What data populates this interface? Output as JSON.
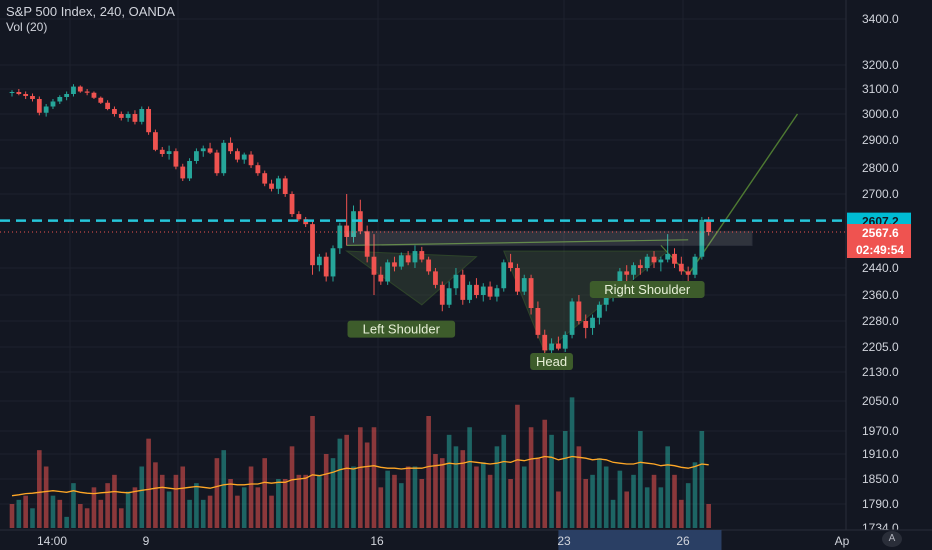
{
  "header": {
    "title": "S&P 500 Index, 240, OANDA",
    "volume_label": "Vol (20)"
  },
  "logo": "A",
  "colors": {
    "background": "#131722",
    "up": "#26a69a",
    "down": "#ef5350",
    "grid": "#1e222d",
    "accent_level": "#26c6da",
    "pattern_line": "#4e7a32",
    "pattern_label_bg": "#3d5c2b",
    "volume_ma": "#ffa726",
    "price_badge": "#ef5350",
    "level_badge": "#00bcd4",
    "scale_highlight": "#2a3f64"
  },
  "chart_data": {
    "type": "candlestick",
    "title": "S&P 500 Index, 240, OANDA",
    "y_ticks": [
      3400,
      3200,
      3100,
      3000,
      2900,
      2800,
      2700,
      2607.2,
      2567.6,
      2440,
      2360,
      2280,
      2205,
      2130,
      2050,
      1970,
      1910,
      1850,
      1790,
      1734
    ],
    "y_tick_labels": [
      "3400.0",
      "3200.0",
      "3100.0",
      "3000.0",
      "2900.0",
      "2800.0",
      "2700.0",
      "2607.2",
      "2567.6",
      "2440.0",
      "2360.0",
      "2280.0",
      "2205.0",
      "2130.0",
      "2050.0",
      "1970.0",
      "1910.0",
      "1850.0",
      "1790.0",
      "1734.0"
    ],
    "x_tick_labels": [
      "14:00",
      "9",
      "16",
      "23",
      "26",
      "Ap"
    ],
    "last_price": 2567.6,
    "last_price_label": "2567.6",
    "countdown": "02:49:54",
    "horizontal_level": 2607.2,
    "horizontal_level_label": "2607.2",
    "price_ohlc": [
      [
        3085,
        3095,
        3070,
        3088
      ],
      [
        3088,
        3100,
        3075,
        3080
      ],
      [
        3080,
        3090,
        3060,
        3072
      ],
      [
        3072,
        3082,
        3050,
        3060
      ],
      [
        3060,
        3070,
        2995,
        3005
      ],
      [
        3005,
        3040,
        2990,
        3030
      ],
      [
        3030,
        3060,
        3020,
        3050
      ],
      [
        3050,
        3075,
        3040,
        3068
      ],
      [
        3068,
        3090,
        3055,
        3080
      ],
      [
        3080,
        3120,
        3070,
        3110
      ],
      [
        3110,
        3115,
        3085,
        3090
      ],
      [
        3090,
        3100,
        3075,
        3085
      ],
      [
        3085,
        3090,
        3060,
        3065
      ],
      [
        3065,
        3070,
        3040,
        3045
      ],
      [
        3045,
        3055,
        3015,
        3020
      ],
      [
        3020,
        3030,
        2990,
        3000
      ],
      [
        3000,
        3010,
        2975,
        2985
      ],
      [
        2985,
        3010,
        2970,
        3000
      ],
      [
        3000,
        3015,
        2960,
        2970
      ],
      [
        2970,
        3030,
        2960,
        3020
      ],
      [
        3020,
        3030,
        2920,
        2930
      ],
      [
        2930,
        2940,
        2860,
        2865
      ],
      [
        2865,
        2875,
        2840,
        2850
      ],
      [
        2850,
        2880,
        2830,
        2860
      ],
      [
        2860,
        2870,
        2795,
        2805
      ],
      [
        2805,
        2815,
        2750,
        2760
      ],
      [
        2760,
        2835,
        2750,
        2825
      ],
      [
        2825,
        2870,
        2815,
        2860
      ],
      [
        2860,
        2880,
        2840,
        2870
      ],
      [
        2870,
        2890,
        2850,
        2855
      ],
      [
        2855,
        2865,
        2770,
        2780
      ],
      [
        2780,
        2900,
        2770,
        2890
      ],
      [
        2890,
        2910,
        2850,
        2860
      ],
      [
        2860,
        2870,
        2820,
        2830
      ],
      [
        2830,
        2855,
        2815,
        2848
      ],
      [
        2848,
        2860,
        2800,
        2810
      ],
      [
        2810,
        2820,
        2770,
        2780
      ],
      [
        2780,
        2790,
        2730,
        2740
      ],
      [
        2740,
        2755,
        2710,
        2720
      ],
      [
        2720,
        2770,
        2700,
        2760
      ],
      [
        2760,
        2770,
        2690,
        2700
      ],
      [
        2700,
        2710,
        2620,
        2630
      ],
      [
        2630,
        2640,
        2605,
        2612
      ],
      [
        2612,
        2620,
        2585,
        2595
      ],
      [
        2595,
        2605,
        2420,
        2450
      ],
      [
        2450,
        2490,
        2430,
        2480
      ],
      [
        2480,
        2495,
        2400,
        2415
      ],
      [
        2415,
        2520,
        2400,
        2510
      ],
      [
        2510,
        2600,
        2490,
        2590
      ],
      [
        2590,
        2700,
        2520,
        2550
      ],
      [
        2550,
        2660,
        2530,
        2640
      ],
      [
        2640,
        2680,
        2560,
        2570
      ],
      [
        2570,
        2590,
        2460,
        2480
      ],
      [
        2480,
        2560,
        2360,
        2420
      ],
      [
        2420,
        2445,
        2390,
        2400
      ],
      [
        2400,
        2470,
        2390,
        2460
      ],
      [
        2460,
        2480,
        2430,
        2445
      ],
      [
        2445,
        2495,
        2435,
        2485
      ],
      [
        2485,
        2500,
        2450,
        2460
      ],
      [
        2460,
        2520,
        2440,
        2500
      ],
      [
        2500,
        2515,
        2460,
        2470
      ],
      [
        2470,
        2480,
        2420,
        2430
      ],
      [
        2430,
        2440,
        2380,
        2390
      ],
      [
        2390,
        2400,
        2310,
        2330
      ],
      [
        2330,
        2400,
        2320,
        2380
      ],
      [
        2380,
        2440,
        2360,
        2420
      ],
      [
        2420,
        2435,
        2330,
        2345
      ],
      [
        2345,
        2400,
        2335,
        2390
      ],
      [
        2390,
        2410,
        2350,
        2360
      ],
      [
        2360,
        2395,
        2340,
        2385
      ],
      [
        2385,
        2400,
        2345,
        2355
      ],
      [
        2355,
        2390,
        2340,
        2380
      ],
      [
        2380,
        2470,
        2370,
        2460
      ],
      [
        2460,
        2490,
        2430,
        2440
      ],
      [
        2440,
        2455,
        2360,
        2370
      ],
      [
        2370,
        2420,
        2360,
        2410
      ],
      [
        2410,
        2420,
        2300,
        2320
      ],
      [
        2320,
        2340,
        2230,
        2240
      ],
      [
        2240,
        2255,
        2180,
        2195
      ],
      [
        2195,
        2230,
        2185,
        2215
      ],
      [
        2215,
        2235,
        2195,
        2200
      ],
      [
        2200,
        2250,
        2190,
        2240
      ],
      [
        2240,
        2350,
        2230,
        2340
      ],
      [
        2340,
        2360,
        2270,
        2280
      ],
      [
        2280,
        2300,
        2230,
        2260
      ],
      [
        2260,
        2300,
        2240,
        2290
      ],
      [
        2290,
        2340,
        2270,
        2330
      ],
      [
        2330,
        2380,
        2310,
        2370
      ],
      [
        2370,
        2390,
        2340,
        2380
      ],
      [
        2380,
        2440,
        2370,
        2430
      ],
      [
        2430,
        2450,
        2400,
        2420
      ],
      [
        2420,
        2460,
        2405,
        2450
      ],
      [
        2450,
        2470,
        2420,
        2440
      ],
      [
        2440,
        2490,
        2430,
        2480
      ],
      [
        2480,
        2500,
        2440,
        2460
      ],
      [
        2460,
        2480,
        2430,
        2470
      ],
      [
        2470,
        2560,
        2460,
        2490
      ],
      [
        2490,
        2510,
        2440,
        2455
      ],
      [
        2455,
        2480,
        2420,
        2430
      ],
      [
        2430,
        2445,
        2395,
        2420
      ],
      [
        2420,
        2490,
        2410,
        2480
      ],
      [
        2480,
        2620,
        2470,
        2610
      ],
      [
        2610,
        2620,
        2555,
        2567.6
      ]
    ],
    "volume": [
      [
        1790,
        "d"
      ],
      [
        1800,
        "u"
      ],
      [
        1810,
        "d"
      ],
      [
        1780,
        "u"
      ],
      [
        1920,
        "d"
      ],
      [
        1880,
        "d"
      ],
      [
        1810,
        "u"
      ],
      [
        1800,
        "d"
      ],
      [
        1760,
        "u"
      ],
      [
        1840,
        "u"
      ],
      [
        1790,
        "d"
      ],
      [
        1780,
        "d"
      ],
      [
        1830,
        "d"
      ],
      [
        1800,
        "d"
      ],
      [
        1840,
        "d"
      ],
      [
        1860,
        "d"
      ],
      [
        1780,
        "d"
      ],
      [
        1820,
        "u"
      ],
      [
        1830,
        "d"
      ],
      [
        1880,
        "u"
      ],
      [
        1950,
        "d"
      ],
      [
        1890,
        "d"
      ],
      [
        1860,
        "d"
      ],
      [
        1820,
        "u"
      ],
      [
        1860,
        "d"
      ],
      [
        1880,
        "d"
      ],
      [
        1800,
        "u"
      ],
      [
        1840,
        "u"
      ],
      [
        1800,
        "u"
      ],
      [
        1810,
        "d"
      ],
      [
        1900,
        "d"
      ],
      [
        1920,
        "u"
      ],
      [
        1850,
        "d"
      ],
      [
        1810,
        "d"
      ],
      [
        1830,
        "u"
      ],
      [
        1880,
        "d"
      ],
      [
        1830,
        "d"
      ],
      [
        1900,
        "d"
      ],
      [
        1810,
        "d"
      ],
      [
        1850,
        "u"
      ],
      [
        1850,
        "d"
      ],
      [
        1930,
        "d"
      ],
      [
        1860,
        "d"
      ],
      [
        1860,
        "d"
      ],
      [
        2010,
        "d"
      ],
      [
        1860,
        "u"
      ],
      [
        1910,
        "d"
      ],
      [
        1900,
        "u"
      ],
      [
        1950,
        "u"
      ],
      [
        1960,
        "d"
      ],
      [
        1880,
        "u"
      ],
      [
        1980,
        "d"
      ],
      [
        1940,
        "d"
      ],
      [
        1980,
        "d"
      ],
      [
        1830,
        "d"
      ],
      [
        1870,
        "u"
      ],
      [
        1860,
        "d"
      ],
      [
        1840,
        "u"
      ],
      [
        1880,
        "d"
      ],
      [
        1880,
        "u"
      ],
      [
        1850,
        "d"
      ],
      [
        2010,
        "d"
      ],
      [
        1910,
        "d"
      ],
      [
        1900,
        "d"
      ],
      [
        1960,
        "u"
      ],
      [
        1930,
        "u"
      ],
      [
        1920,
        "d"
      ],
      [
        1980,
        "u"
      ],
      [
        1880,
        "d"
      ],
      [
        1890,
        "u"
      ],
      [
        1860,
        "d"
      ],
      [
        1930,
        "u"
      ],
      [
        1960,
        "u"
      ],
      [
        1850,
        "d"
      ],
      [
        2040,
        "d"
      ],
      [
        1880,
        "u"
      ],
      [
        1980,
        "d"
      ],
      [
        1900,
        "d"
      ],
      [
        2000,
        "d"
      ],
      [
        1960,
        "u"
      ],
      [
        1820,
        "d"
      ],
      [
        1970,
        "u"
      ],
      [
        2060,
        "u"
      ],
      [
        1930,
        "d"
      ],
      [
        1850,
        "d"
      ],
      [
        1860,
        "u"
      ],
      [
        1900,
        "u"
      ],
      [
        1880,
        "u"
      ],
      [
        1800,
        "u"
      ],
      [
        1870,
        "u"
      ],
      [
        1820,
        "d"
      ],
      [
        1860,
        "u"
      ],
      [
        1970,
        "u"
      ],
      [
        1830,
        "u"
      ],
      [
        1860,
        "d"
      ],
      [
        1830,
        "u"
      ],
      [
        1930,
        "u"
      ],
      [
        1860,
        "d"
      ],
      [
        1800,
        "d"
      ],
      [
        1840,
        "u"
      ],
      [
        1890,
        "u"
      ],
      [
        1970,
        "u"
      ],
      [
        1790,
        "d"
      ]
    ],
    "volume_ma_approx": [
      1810,
      1812,
      1815,
      1816,
      1818,
      1820,
      1822,
      1820,
      1818,
      1822,
      1818,
      1816,
      1815,
      1817,
      1818,
      1820,
      1818,
      1817,
      1820,
      1823,
      1825,
      1828,
      1830,
      1828,
      1826,
      1828,
      1830,
      1832,
      1830,
      1828,
      1832,
      1836,
      1838,
      1836,
      1836,
      1838,
      1838,
      1842,
      1840,
      1842,
      1842,
      1848,
      1850,
      1852,
      1860,
      1858,
      1862,
      1866,
      1872,
      1876,
      1874,
      1878,
      1880,
      1882,
      1878,
      1876,
      1876,
      1874,
      1876,
      1876,
      1876,
      1880,
      1882,
      1884,
      1888,
      1886,
      1888,
      1892,
      1890,
      1888,
      1886,
      1888,
      1892,
      1890,
      1896,
      1894,
      1898,
      1900,
      1904,
      1902,
      1896,
      1900,
      1904,
      1902,
      1900,
      1896,
      1898,
      1896,
      1890,
      1888,
      1886,
      1886,
      1890,
      1888,
      1886,
      1882,
      1884,
      1882,
      1878,
      1876,
      1880,
      1886,
      1884
    ],
    "pattern": {
      "labels": [
        "Left Shoulder",
        "Head",
        "Right Shoulder"
      ],
      "neckline": [
        [
          49,
          2520
        ],
        [
          99,
          2540
        ]
      ],
      "left_shoulder": [
        [
          49,
          2500
        ],
        [
          60,
          2330
        ],
        [
          68,
          2480
        ]
      ],
      "head": [
        [
          72,
          2500
        ],
        [
          78,
          2190
        ],
        [
          96,
          2500
        ]
      ],
      "right_shoulder": [
        [
          95,
          2520
        ],
        [
          99,
          2420
        ]
      ],
      "projection": [
        [
          99,
          2420
        ],
        [
          115,
          3000
        ]
      ]
    },
    "resistance_box": [
      2520,
      2570
    ]
  }
}
